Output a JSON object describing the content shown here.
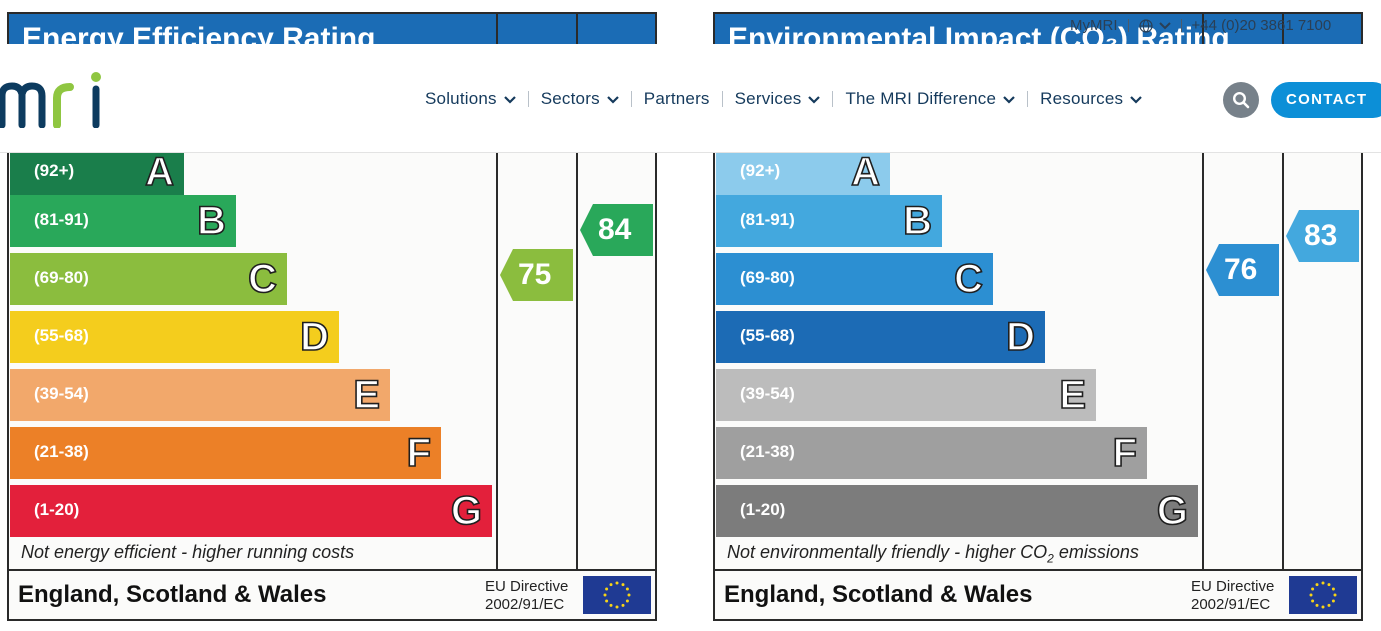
{
  "epc": {
    "energy": {
      "title": "Energy Efficiency Rating",
      "bands": [
        {
          "range": "(92+)",
          "letter": "A",
          "color": "#1a7e4b"
        },
        {
          "range": "(81-91)",
          "letter": "B",
          "color": "#29a85a"
        },
        {
          "range": "(69-80)",
          "letter": "C",
          "color": "#8bbd3e"
        },
        {
          "range": "(55-68)",
          "letter": "D",
          "color": "#f4cd1d"
        },
        {
          "range": "(39-54)",
          "letter": "E",
          "color": "#f2a86b"
        },
        {
          "range": "(21-38)",
          "letter": "F",
          "color": "#ec8027"
        },
        {
          "range": "(1-20)",
          "letter": "G",
          "color": "#e3203b"
        }
      ],
      "current": {
        "value": "75",
        "color": "#8bbd3e"
      },
      "potential": {
        "value": "84",
        "color": "#29a85a"
      },
      "footnote": "Not energy efficient - higher running costs",
      "country": "England, Scotland & Wales",
      "directive_line1": "EU Directive",
      "directive_line2": "2002/91/EC"
    },
    "environment": {
      "title": "Environmental Impact (CO₂) Rating",
      "bands": [
        {
          "range": "(92+)",
          "letter": "A",
          "color": "#8ccbec"
        },
        {
          "range": "(81-91)",
          "letter": "B",
          "color": "#43a8de"
        },
        {
          "range": "(69-80)",
          "letter": "C",
          "color": "#2c8fd2"
        },
        {
          "range": "(55-68)",
          "letter": "D",
          "color": "#1c6bb5"
        },
        {
          "range": "(39-54)",
          "letter": "E",
          "color": "#bcbcbc"
        },
        {
          "range": "(21-38)",
          "letter": "F",
          "color": "#9f9f9f"
        },
        {
          "range": "(1-20)",
          "letter": "G",
          "color": "#7c7c7c"
        }
      ],
      "current": {
        "value": "76",
        "color": "#2c8fd2"
      },
      "potential": {
        "value": "83",
        "color": "#43a8de"
      },
      "footnote_prefix": "Not environmentally friendly - higher CO",
      "footnote_sub": "2",
      "footnote_suffix": " emissions",
      "country": "England, Scotland & Wales",
      "directive_line1": "EU Directive",
      "directive_line2": "2002/91/EC"
    }
  },
  "header": {
    "logo": "mri",
    "nav": [
      {
        "label": "Solutions",
        "dropdown": true
      },
      {
        "label": "Sectors",
        "dropdown": true
      },
      {
        "label": "Partners",
        "dropdown": false
      },
      {
        "label": "Services",
        "dropdown": true
      },
      {
        "label": "The MRI Difference",
        "dropdown": true
      },
      {
        "label": "Resources",
        "dropdown": true
      }
    ],
    "search_icon": "search-icon",
    "contact_label": "CONTACT"
  },
  "utility": {
    "mymri": "MyMRI",
    "globe_icon": "globe-icon",
    "phone": "+44 (0)20 3861 7100"
  },
  "colors": {
    "title_blue": "#1b6cb5",
    "nav_text": "#153a5c",
    "contact": "#0c8fd7",
    "search_bg": "#77818a"
  }
}
